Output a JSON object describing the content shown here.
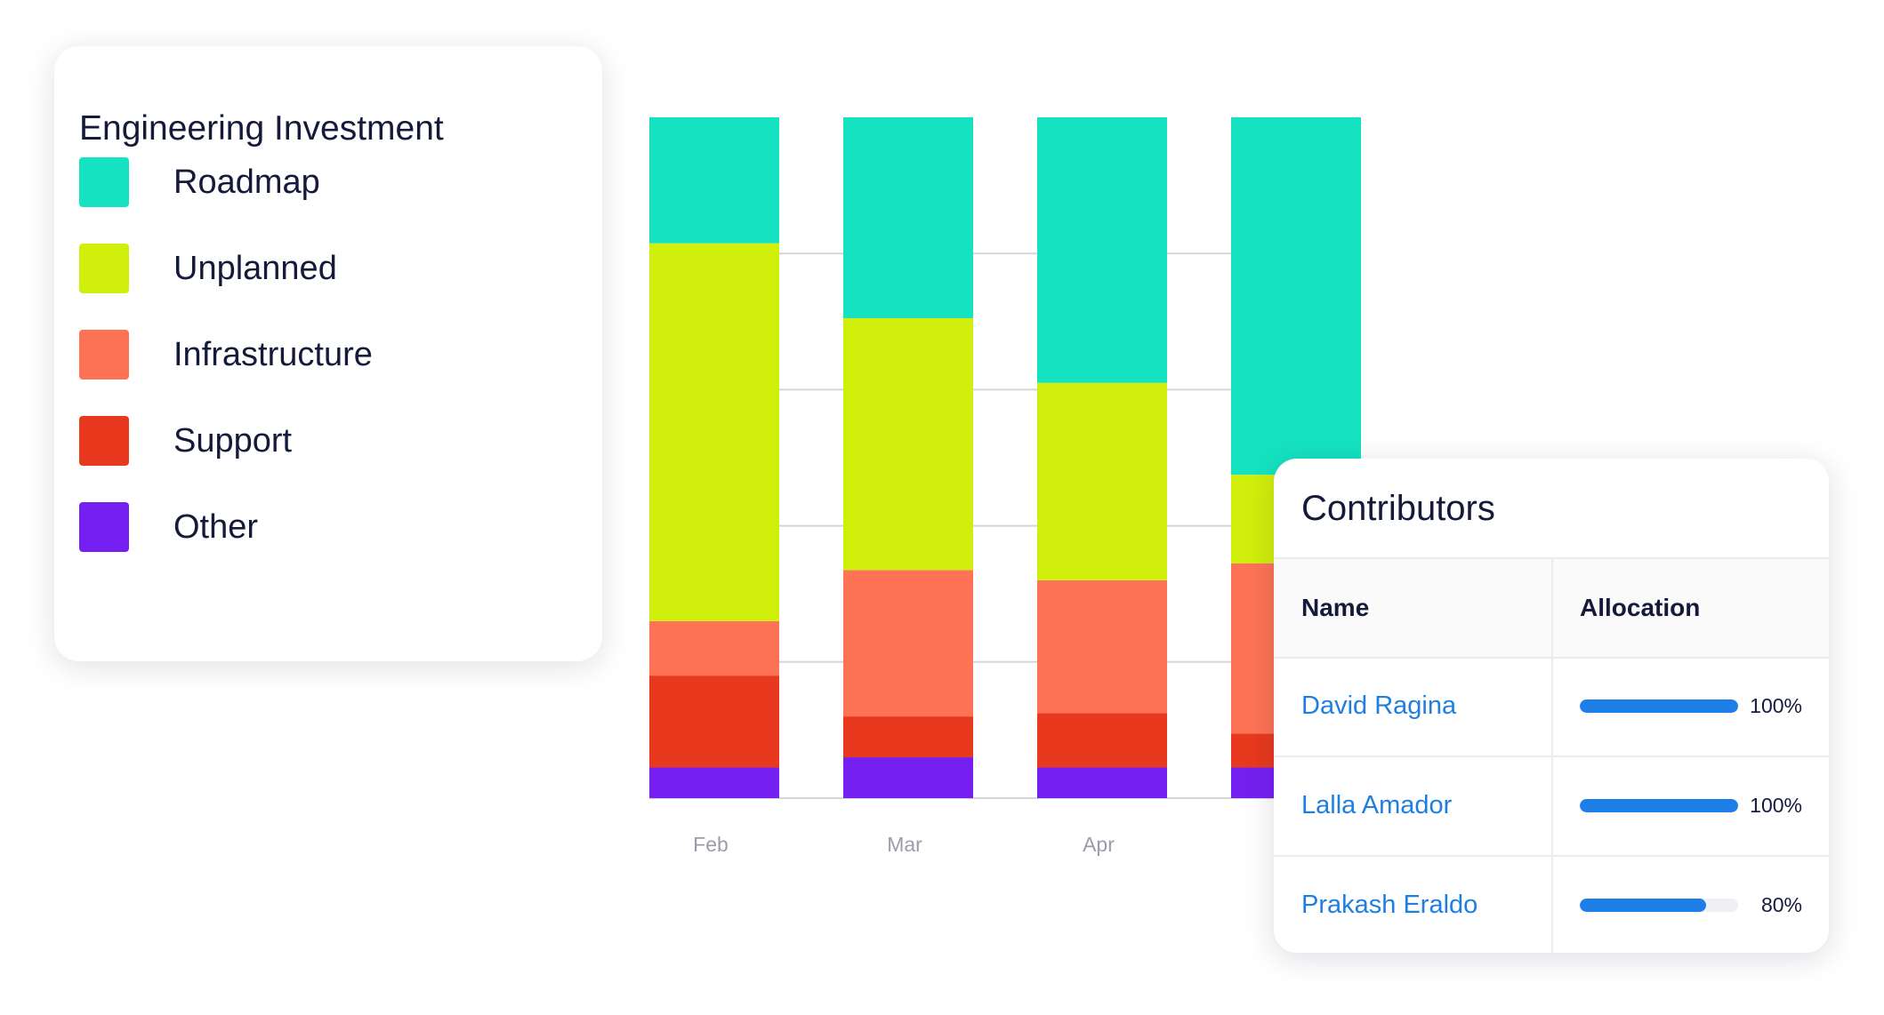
{
  "legend": {
    "title": "Engineering Investment",
    "items": [
      {
        "label": "Roadmap",
        "color": "#15e2c0"
      },
      {
        "label": "Unplanned",
        "color": "#d0ef0b"
      },
      {
        "label": "Infrastructure",
        "color": "#fe7355"
      },
      {
        "label": "Support",
        "color": "#e8391e"
      },
      {
        "label": "Other",
        "color": "#7520f0"
      }
    ]
  },
  "chart_data": {
    "type": "bar",
    "stacked": true,
    "categories": [
      "Feb",
      "Mar",
      "Apr",
      ""
    ],
    "series": [
      {
        "name": "Other",
        "color": "#7520f0",
        "values": [
          4.5,
          6,
          4.5,
          4.5
        ]
      },
      {
        "name": "Support",
        "color": "#e8391e",
        "values": [
          13.5,
          6,
          8,
          5
        ]
      },
      {
        "name": "Infrastructure",
        "color": "#fe7355",
        "values": [
          8,
          21.5,
          19.5,
          25
        ]
      },
      {
        "name": "Unplanned",
        "color": "#d0ef0b",
        "values": [
          55.5,
          37,
          29,
          13
        ]
      },
      {
        "name": "Roadmap",
        "color": "#15e2c0",
        "values": [
          18.5,
          29.5,
          39,
          52.5
        ]
      }
    ],
    "ylim": [
      0,
      100
    ],
    "grid": true,
    "title": "",
    "xlabel": "",
    "ylabel": ""
  },
  "contributors": {
    "title": "Contributors",
    "columns": [
      "Name",
      "Allocation"
    ],
    "rows": [
      {
        "name": "David Ragina",
        "allocation": 100,
        "allocation_label": "100%"
      },
      {
        "name": "Lalla Amador",
        "allocation": 100,
        "allocation_label": "100%"
      },
      {
        "name": "Prakash Eraldo",
        "allocation": 80,
        "allocation_label": "80%"
      }
    ]
  }
}
